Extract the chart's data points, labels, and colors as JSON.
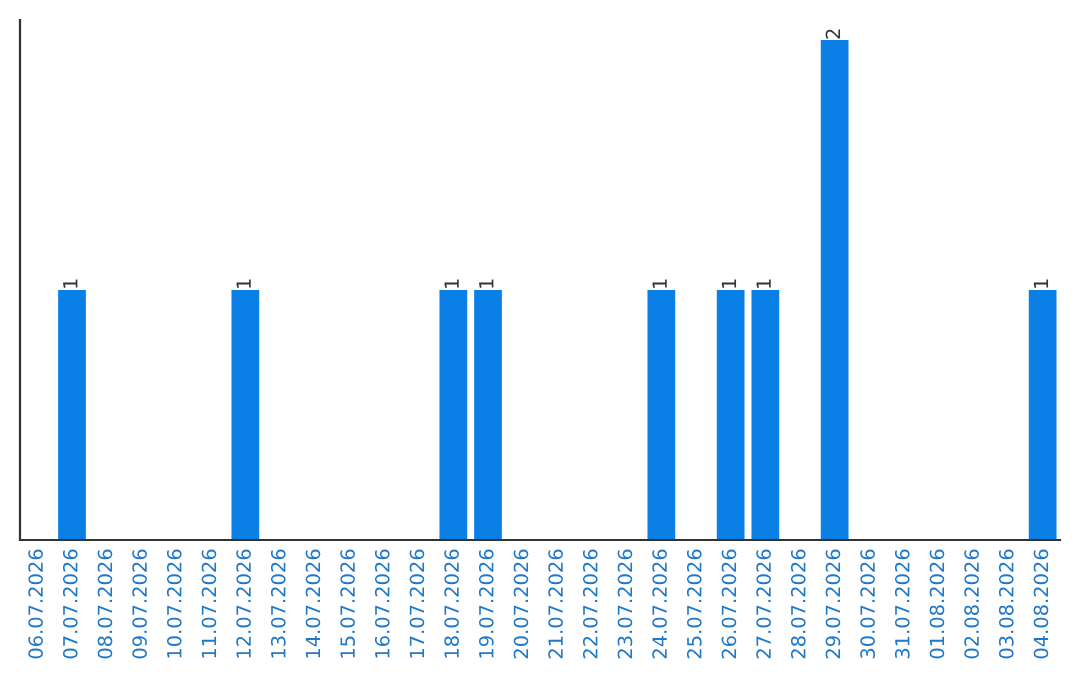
{
  "chart_data": {
    "type": "bar",
    "categories": [
      "06.07.2026",
      "07.07.2026",
      "08.07.2026",
      "09.07.2026",
      "10.07.2026",
      "11.07.2026",
      "12.07.2026",
      "13.07.2026",
      "14.07.2026",
      "15.07.2026",
      "16.07.2026",
      "17.07.2026",
      "18.07.2026",
      "19.07.2026",
      "20.07.2026",
      "21.07.2026",
      "22.07.2026",
      "23.07.2026",
      "24.07.2026",
      "25.07.2026",
      "26.07.2026",
      "27.07.2026",
      "28.07.2026",
      "29.07.2026",
      "30.07.2026",
      "31.07.2026",
      "01.08.2026",
      "02.08.2026",
      "03.08.2026",
      "04.08.2026"
    ],
    "values": [
      0,
      1,
      0,
      0,
      0,
      0,
      1,
      0,
      0,
      0,
      0,
      0,
      1,
      1,
      0,
      0,
      0,
      0,
      1,
      0,
      1,
      1,
      0,
      2,
      0,
      0,
      0,
      0,
      0,
      1
    ],
    "color": "#0a7fe6",
    "value_labels": [
      null,
      "1",
      null,
      null,
      null,
      null,
      "1",
      null,
      null,
      null,
      null,
      null,
      "1",
      "1",
      null,
      null,
      null,
      null,
      "1",
      null,
      "1",
      "1",
      null,
      "2",
      null,
      null,
      null,
      null,
      null,
      "1"
    ],
    "tick_labels": "x",
    "grid": false
  }
}
